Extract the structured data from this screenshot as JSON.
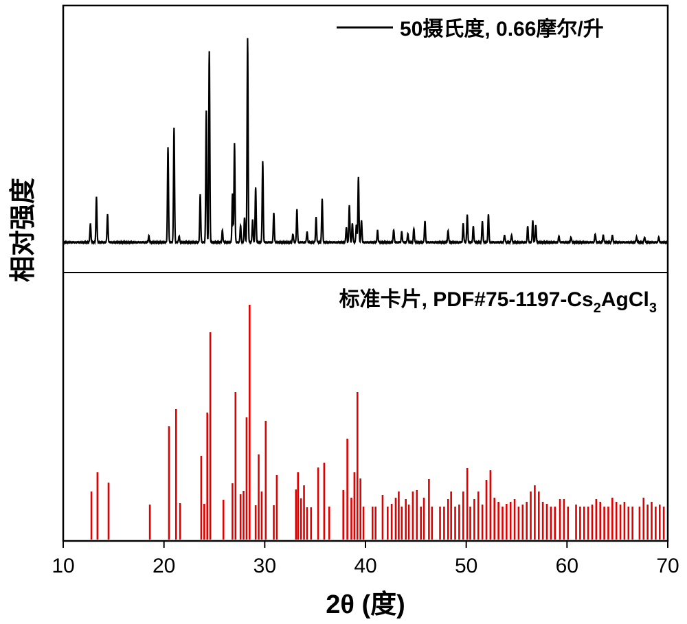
{
  "chart_data": [
    {
      "type": "line",
      "panel": "top",
      "legend": {
        "placement": "top-right",
        "label": "50摄氏度, 0.66摩尔/升"
      },
      "color": "#000000",
      "xlim": [
        10,
        70
      ],
      "x": [
        12.7,
        13.3,
        14.4,
        18.5,
        20.4,
        21.0,
        21.5,
        23.6,
        24.2,
        24.5,
        25.8,
        26.8,
        27.0,
        27.6,
        28.0,
        28.3,
        28.8,
        29.1,
        29.8,
        30.9,
        32.8,
        33.2,
        34.2,
        35.1,
        35.7,
        38.1,
        38.4,
        38.7,
        39.1,
        39.3,
        39.6,
        41.2,
        42.8,
        43.6,
        44.2,
        44.8,
        45.9,
        48.2,
        49.7,
        50.1,
        50.7,
        51.6,
        52.2,
        53.8,
        54.5,
        56.1,
        56.6,
        56.9,
        59.2,
        60.4,
        62.8,
        63.6,
        64.5,
        66.9,
        67.7,
        69.1
      ],
      "values": [
        35,
        85,
        52,
        12,
        178,
        214,
        12,
        89,
        246,
        358,
        22,
        90,
        185,
        32,
        46,
        381,
        42,
        104,
        152,
        55,
        16,
        62,
        20,
        46,
        82,
        28,
        70,
        36,
        34,
        122,
        42,
        22,
        24,
        20,
        16,
        26,
        40,
        22,
        35,
        52,
        30,
        40,
        52,
        14,
        14,
        30,
        40,
        32,
        12,
        10,
        16,
        14,
        14,
        10,
        10,
        10
      ]
    },
    {
      "type": "bar",
      "panel": "bottom",
      "legend": {
        "placement": "top-right",
        "label_main": "标准卡片, PDF#75-1197-Cs",
        "label_sub1": "2",
        "label_mid": "AgCl",
        "label_sub2": "3"
      },
      "color": "#e00000",
      "xlim": [
        10,
        70
      ],
      "x": [
        12.8,
        13.4,
        14.5,
        18.6,
        20.5,
        21.2,
        21.6,
        23.7,
        24.0,
        24.3,
        24.6,
        25.9,
        26.8,
        27.1,
        27.6,
        27.9,
        28.2,
        28.5,
        29.1,
        29.4,
        29.7,
        30.1,
        30.9,
        31.2,
        33.1,
        33.3,
        33.6,
        33.9,
        34.2,
        34.6,
        35.3,
        35.9,
        36.4,
        37.8,
        38.2,
        38.6,
        38.9,
        39.2,
        39.5,
        39.8,
        40.7,
        41.0,
        41.7,
        42.2,
        42.6,
        43.0,
        43.3,
        43.6,
        44.0,
        44.3,
        44.7,
        45.1,
        45.5,
        45.8,
        46.3,
        46.6,
        47.4,
        47.8,
        48.2,
        48.5,
        48.9,
        49.3,
        49.7,
        50.1,
        50.4,
        50.8,
        51.2,
        51.6,
        52.0,
        52.4,
        52.8,
        53.2,
        53.6,
        54.0,
        54.4,
        54.8,
        55.2,
        55.6,
        56.0,
        56.4,
        56.8,
        57.2,
        57.6,
        58.0,
        58.4,
        58.8,
        59.3,
        59.7,
        60.1,
        60.9,
        61.3,
        61.7,
        62.1,
        62.5,
        62.9,
        63.3,
        63.7,
        64.1,
        64.5,
        64.9,
        65.3,
        65.7,
        66.1,
        66.5,
        67.2,
        67.6,
        68.0,
        68.4,
        68.8,
        69.2,
        69.6
      ],
      "values": [
        70,
        98,
        83,
        51,
        165,
        190,
        53,
        122,
        52,
        185,
        302,
        58,
        82,
        215,
        66,
        71,
        178,
        342,
        50,
        124,
        70,
        173,
        50,
        94,
        73,
        98,
        60,
        79,
        47,
        47,
        105,
        112,
        48,
        72,
        147,
        61,
        98,
        215,
        89,
        48,
        48,
        48,
        65,
        48,
        52,
        61,
        70,
        48,
        59,
        51,
        70,
        72,
        48,
        61,
        88,
        48,
        48,
        48,
        59,
        70,
        48,
        51,
        70,
        104,
        48,
        59,
        70,
        51,
        87,
        101,
        61,
        55,
        48,
        52,
        55,
        59,
        48,
        51,
        55,
        70,
        79,
        70,
        55,
        52,
        48,
        48,
        59,
        59,
        48,
        51,
        48,
        48,
        48,
        51,
        59,
        55,
        48,
        48,
        61,
        55,
        51,
        55,
        48,
        48,
        48,
        61,
        51,
        55,
        48,
        51,
        48
      ]
    }
  ],
  "axes": {
    "xlabel": "2θ (度)",
    "ylabel": "相对强度",
    "xticks": [
      "10",
      "20",
      "30",
      "40",
      "50",
      "60",
      "70"
    ]
  }
}
